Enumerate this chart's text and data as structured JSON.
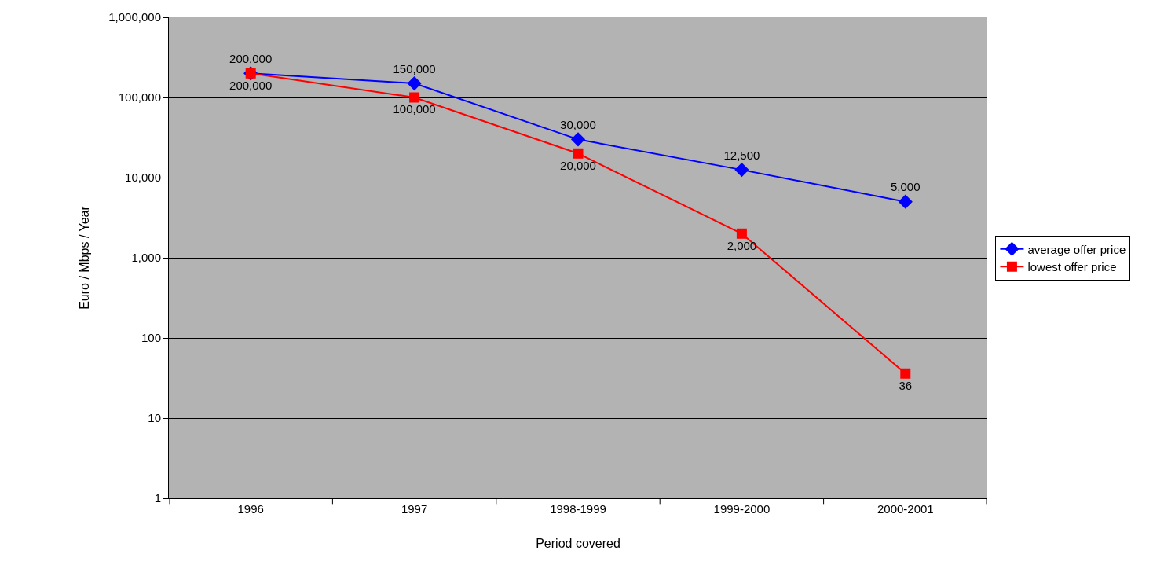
{
  "chart_data": {
    "type": "line",
    "xlabel": "Period covered",
    "ylabel": "Euro / Mbps / Year",
    "categories": [
      "1996",
      "1997",
      "1998-1999",
      "1999-2000",
      "2000-2001"
    ],
    "series": [
      {
        "name": "average offer price",
        "color": "#0000ff",
        "marker": "diamond",
        "values": [
          200000,
          150000,
          30000,
          12500,
          5000
        ],
        "value_labels": [
          "200,000",
          "150,000",
          "30,000",
          "12,500",
          "5,000"
        ]
      },
      {
        "name": "lowest offer price",
        "color": "#ff0000",
        "marker": "square",
        "values": [
          200000,
          100000,
          20000,
          2000,
          36
        ],
        "value_labels": [
          "200,000",
          "100,000",
          "20,000",
          "2,000",
          "36"
        ]
      }
    ],
    "log": true,
    "ylim": [
      1,
      1000000
    ],
    "yticks": [
      {
        "value": 1,
        "label": "1"
      },
      {
        "value": 10,
        "label": "10"
      },
      {
        "value": 100,
        "label": "100"
      },
      {
        "value": 1000,
        "label": "1,000"
      },
      {
        "value": 10000,
        "label": "10,000"
      },
      {
        "value": 100000,
        "label": "100,000"
      },
      {
        "value": 1000000,
        "label": "1,000,000"
      }
    ],
    "grid": "y",
    "legend": "right",
    "line_style": "solid"
  }
}
